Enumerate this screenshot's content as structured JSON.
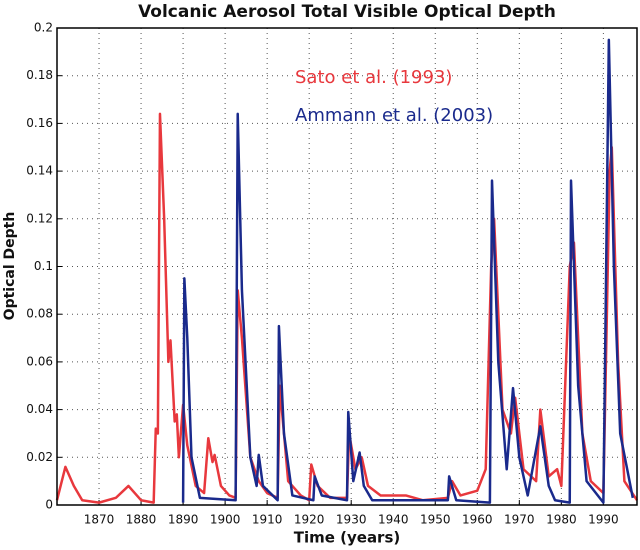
{
  "chart_data": {
    "type": "line",
    "title": "Volcanic Aerosol Total Visible Optical Depth",
    "x_label": "Time (years)",
    "y_label": "Optical Depth",
    "xlim": [
      1860,
      1998
    ],
    "ylim": [
      0,
      0.2
    ],
    "xticks": [
      1870,
      1880,
      1890,
      1900,
      1910,
      1920,
      1930,
      1940,
      1950,
      1960,
      1970,
      1980,
      1990
    ],
    "yticks": [
      0,
      0.02,
      0.04,
      0.06,
      0.08,
      0.1,
      0.12,
      0.14,
      0.16,
      0.18,
      0.2
    ],
    "grid": true,
    "series": [
      {
        "name": "Sato et al. (1993)",
        "color": "#e8383d",
        "x": [
          1860,
          1862,
          1864,
          1866,
          1870,
          1874,
          1877,
          1880,
          1883,
          1883.5,
          1884,
          1884.5,
          1885.5,
          1886.5,
          1887,
          1888,
          1888.5,
          1889,
          1890,
          1891,
          1893,
          1895,
          1896,
          1897,
          1897.5,
          1899,
          1901,
          1902.5,
          1903,
          1904,
          1906,
          1908,
          1910,
          1912.5,
          1913,
          1915,
          1918,
          1920,
          1920.5,
          1922,
          1925,
          1929,
          1929.5,
          1931,
          1932.5,
          1934,
          1937,
          1943,
          1947,
          1953,
          1954,
          1956,
          1960,
          1962,
          1963.3,
          1964,
          1966,
          1968,
          1969,
          1971,
          1974,
          1975,
          1977,
          1979,
          1980,
          1982,
          1983,
          1985,
          1987,
          1990,
          1991.5,
          1992,
          1993.5,
          1995,
          1998
        ],
        "values": [
          0.002,
          0.016,
          0.008,
          0.002,
          0.001,
          0.003,
          0.008,
          0.002,
          0.001,
          0.032,
          0.03,
          0.164,
          0.12,
          0.06,
          0.069,
          0.035,
          0.038,
          0.02,
          0.042,
          0.025,
          0.008,
          0.005,
          0.028,
          0.018,
          0.021,
          0.008,
          0.004,
          0.003,
          0.09,
          0.07,
          0.02,
          0.01,
          0.005,
          0.003,
          0.05,
          0.01,
          0.004,
          0.002,
          0.017,
          0.008,
          0.003,
          0.003,
          0.03,
          0.015,
          0.02,
          0.008,
          0.004,
          0.004,
          0.002,
          0.003,
          0.01,
          0.004,
          0.006,
          0.015,
          0.1,
          0.12,
          0.04,
          0.03,
          0.045,
          0.015,
          0.01,
          0.04,
          0.012,
          0.015,
          0.008,
          0.1,
          0.11,
          0.03,
          0.01,
          0.005,
          0.14,
          0.15,
          0.06,
          0.01,
          0.002
        ]
      },
      {
        "name": "Ammann et al. (2003)",
        "color": "#1a2a8c",
        "x": [
          1890,
          1890.3,
          1891,
          1892,
          1894,
          1902.5,
          1903,
          1904,
          1906,
          1907.5,
          1908,
          1909,
          1912.5,
          1912.8,
          1914,
          1916,
          1921,
          1921.3,
          1923,
          1929,
          1929.3,
          1930.5,
          1932,
          1933,
          1935,
          1953,
          1953.3,
          1955,
          1963,
          1963.5,
          1965,
          1967,
          1968.5,
          1970,
          1972,
          1975,
          1977,
          1978.5,
          1982,
          1982.3,
          1984,
          1986,
          1990,
          1991.3,
          1992.5,
          1994,
          1997
        ],
        "values": [
          0.001,
          0.095,
          0.07,
          0.02,
          0.003,
          0.002,
          0.164,
          0.09,
          0.02,
          0.008,
          0.021,
          0.008,
          0.002,
          0.075,
          0.03,
          0.004,
          0.002,
          0.012,
          0.004,
          0.002,
          0.039,
          0.01,
          0.022,
          0.008,
          0.002,
          0.002,
          0.012,
          0.002,
          0.001,
          0.136,
          0.06,
          0.015,
          0.049,
          0.02,
          0.004,
          0.033,
          0.008,
          0.002,
          0.001,
          0.136,
          0.05,
          0.01,
          0.001,
          0.195,
          0.1,
          0.03,
          0.003
        ]
      }
    ]
  }
}
